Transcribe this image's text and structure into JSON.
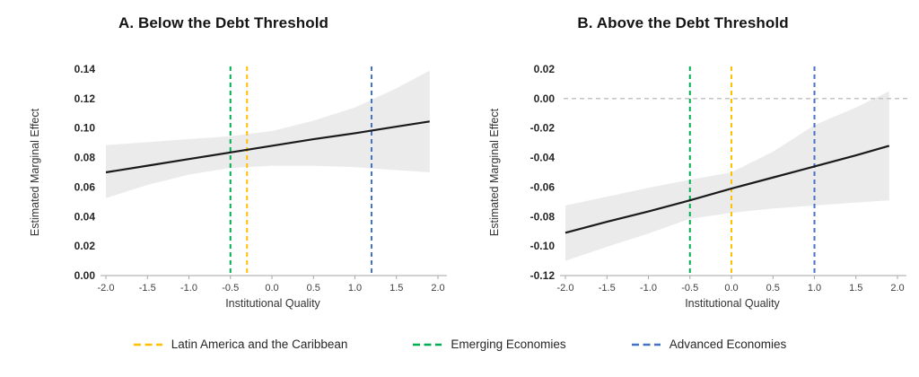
{
  "figure": {
    "legend": [
      {
        "label": "Latin America and the Caribbean",
        "color": "#FFC000"
      },
      {
        "label": "Emerging Economies",
        "color": "#00B050"
      },
      {
        "label": "Advanced Economies",
        "color": "#4472C4"
      }
    ],
    "colors": {
      "band": "#ebebeb",
      "line": "#1a1a1a",
      "axis": "#a6a6a6",
      "zero_line": "#bfbfbf"
    }
  },
  "chart_data": [
    {
      "type": "line",
      "title": "A. Below the Debt Threshold",
      "xlabel": "Institutional Quality",
      "ylabel": "Estimated Marginal Effect",
      "xlim": [
        -2.0,
        2.0
      ],
      "ylim": [
        0.0,
        0.14
      ],
      "grid": false,
      "zero_line": false,
      "x_ticks": {
        "values": [
          -2.0,
          -1.5,
          -1.0,
          -0.5,
          0.0,
          0.5,
          1.0,
          1.5,
          2.0
        ],
        "labels": [
          "-2.0",
          "-1.5",
          "-1.0",
          "-0.5",
          "0.0",
          "0.5",
          "1.0",
          "1.5",
          "2.0"
        ]
      },
      "y_ticks": {
        "values": [
          0.0,
          0.02,
          0.04,
          0.06,
          0.08,
          0.1,
          0.12,
          0.14
        ],
        "labels": [
          "0.00",
          "0.02",
          "0.04",
          "0.06",
          "0.08",
          "0.10",
          "0.12",
          "0.14"
        ]
      },
      "series": [
        {
          "name": "Estimated Marginal Effect",
          "x": [
            -2.0,
            -1.5,
            -1.0,
            -0.5,
            0.0,
            0.5,
            1.0,
            1.5,
            1.9
          ],
          "y": [
            0.07,
            0.0745,
            0.079,
            0.0835,
            0.088,
            0.0925,
            0.0965,
            0.101,
            0.1045
          ]
        }
      ],
      "confidence_band": {
        "x": [
          -2.0,
          -1.5,
          -1.0,
          -0.5,
          0.0,
          0.5,
          1.0,
          1.5,
          1.9
        ],
        "upper": [
          0.0885,
          0.0905,
          0.0925,
          0.0945,
          0.098,
          0.105,
          0.114,
          0.127,
          0.139
        ],
        "lower": [
          0.0525,
          0.0615,
          0.0685,
          0.073,
          0.0745,
          0.0745,
          0.0735,
          0.0715,
          0.07
        ]
      },
      "reference_lines": [
        {
          "name": "Emerging Economies",
          "x": -0.5,
          "color": "#00B050"
        },
        {
          "name": "Latin America and the Caribbean",
          "x": -0.3,
          "color": "#FFC000"
        },
        {
          "name": "Advanced Economies",
          "x": 1.2,
          "color": "#4472C4"
        }
      ]
    },
    {
      "type": "line",
      "title": "B. Above the Debt Threshold",
      "xlabel": "Institutional Quality",
      "ylabel": "Estimated Marginal Effect",
      "xlim": [
        -2.0,
        2.0
      ],
      "ylim": [
        -0.12,
        0.02
      ],
      "grid": false,
      "zero_line": true,
      "x_ticks": {
        "values": [
          -2.0,
          -1.5,
          -1.0,
          -0.5,
          0.0,
          0.5,
          1.0,
          1.5,
          2.0
        ],
        "labels": [
          "-2.0",
          "-1.5",
          "-1.0",
          "-0.5",
          "0.0",
          "0.5",
          "1.0",
          "1.5",
          "2.0"
        ]
      },
      "y_ticks": {
        "values": [
          -0.12,
          -0.1,
          -0.08,
          -0.06,
          -0.04,
          -0.02,
          0.0,
          0.02
        ],
        "labels": [
          "-0.12",
          "-0.10",
          "-0.08",
          "-0.06",
          "-0.04",
          "-0.02",
          "0.00",
          "0.02"
        ]
      },
      "series": [
        {
          "name": "Estimated Marginal Effect",
          "x": [
            -2.0,
            -1.5,
            -1.0,
            -0.5,
            0.0,
            0.5,
            1.0,
            1.5,
            1.9
          ],
          "y": [
            -0.091,
            -0.0835,
            -0.0765,
            -0.069,
            -0.061,
            -0.0535,
            -0.046,
            -0.0385,
            -0.032
          ]
        }
      ],
      "confidence_band": {
        "x": [
          -2.0,
          -1.5,
          -1.0,
          -0.5,
          0.0,
          0.5,
          1.0,
          1.5,
          1.9
        ],
        "upper": [
          -0.0725,
          -0.0665,
          -0.0605,
          -0.055,
          -0.05,
          -0.036,
          -0.018,
          -0.006,
          0.005
        ],
        "lower": [
          -0.11,
          -0.1005,
          -0.0915,
          -0.0815,
          -0.0775,
          -0.0745,
          -0.0725,
          -0.0705,
          -0.069
        ]
      },
      "reference_lines": [
        {
          "name": "Emerging Economies",
          "x": -0.5,
          "color": "#00B050"
        },
        {
          "name": "Latin America and the Caribbean",
          "x": 0.0,
          "color": "#FFC000"
        },
        {
          "name": "Advanced Economies",
          "x": 1.0,
          "color": "#4472C4"
        }
      ]
    }
  ]
}
